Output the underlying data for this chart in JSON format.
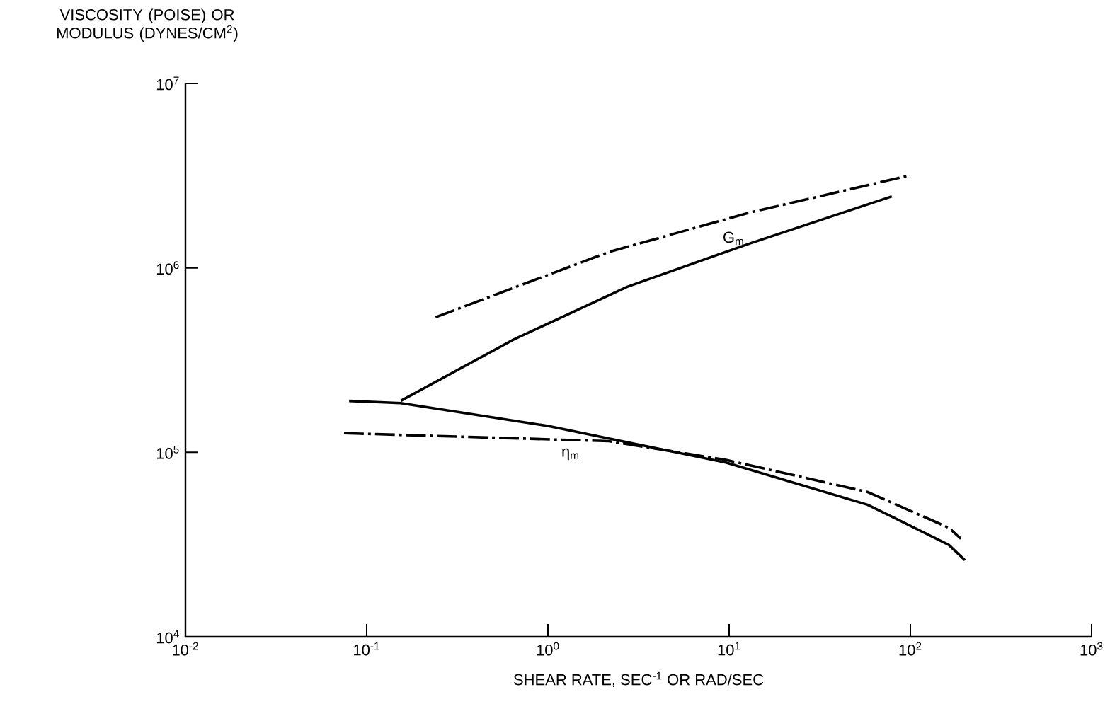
{
  "chart_data": {
    "type": "line",
    "xlabel": "SHEAR RATE, SEC$^{-1}$ OR RAD/SEC",
    "ylabel": "VISCOSITY (POISE) OR MODULUS (DYNES/CM$^{2}$)",
    "log": "xy",
    "grid": false,
    "marker": "none",
    "xlim": [
      0.01,
      1000
    ],
    "ylim": [
      10000,
      10000000
    ],
    "xticks": [
      {
        "value": 0.01,
        "label": "10$^{-2}$"
      },
      {
        "value": 0.1,
        "label": "10$^{-1}$"
      },
      {
        "value": 1,
        "label": "10$^{0}$"
      },
      {
        "value": 10,
        "label": "10$^{1}$"
      },
      {
        "value": 100,
        "label": "10$^{2}$"
      },
      {
        "value": 1000,
        "label": "10$^{3}$"
      }
    ],
    "yticks": [
      {
        "value": 10000,
        "label": "10$^{4}$"
      },
      {
        "value": 100000,
        "label": "10$^{5}$"
      },
      {
        "value": 1000000,
        "label": "10$^{6}$"
      },
      {
        "value": 10000000,
        "label": "10$^{7}$"
      }
    ],
    "series": [
      {
        "color": "#000000",
        "line_style": "solid",
        "x": [
          0.154,
          0.65,
          2.74,
          13.1,
          79
        ],
        "values": [
          190000,
          410000,
          790000,
          1360000,
          2440000
        ]
      },
      {
        "color": "#000000",
        "line_style": "dashdot",
        "x": [
          0.24,
          2.17,
          13.1,
          100
        ],
        "values": [
          540000,
          1220000,
          2000000,
          3180000
        ]
      },
      {
        "color": "#000000",
        "line_style": "solid",
        "x": [
          0.08,
          0.154,
          1.0,
          9.6,
          58,
          163,
          200
        ],
        "values": [
          190000,
          185000,
          139000,
          88000,
          52000,
          31500,
          26000
        ]
      },
      {
        "color": "#000000",
        "line_style": "dashdot",
        "x": [
          0.075,
          2.17,
          9.6,
          58,
          163,
          190
        ],
        "values": [
          127000,
          115000,
          91000,
          61000,
          39000,
          34000
        ]
      }
    ],
    "annotations": [
      "G$_{m}$",
      "η$_{m}$"
    ]
  }
}
